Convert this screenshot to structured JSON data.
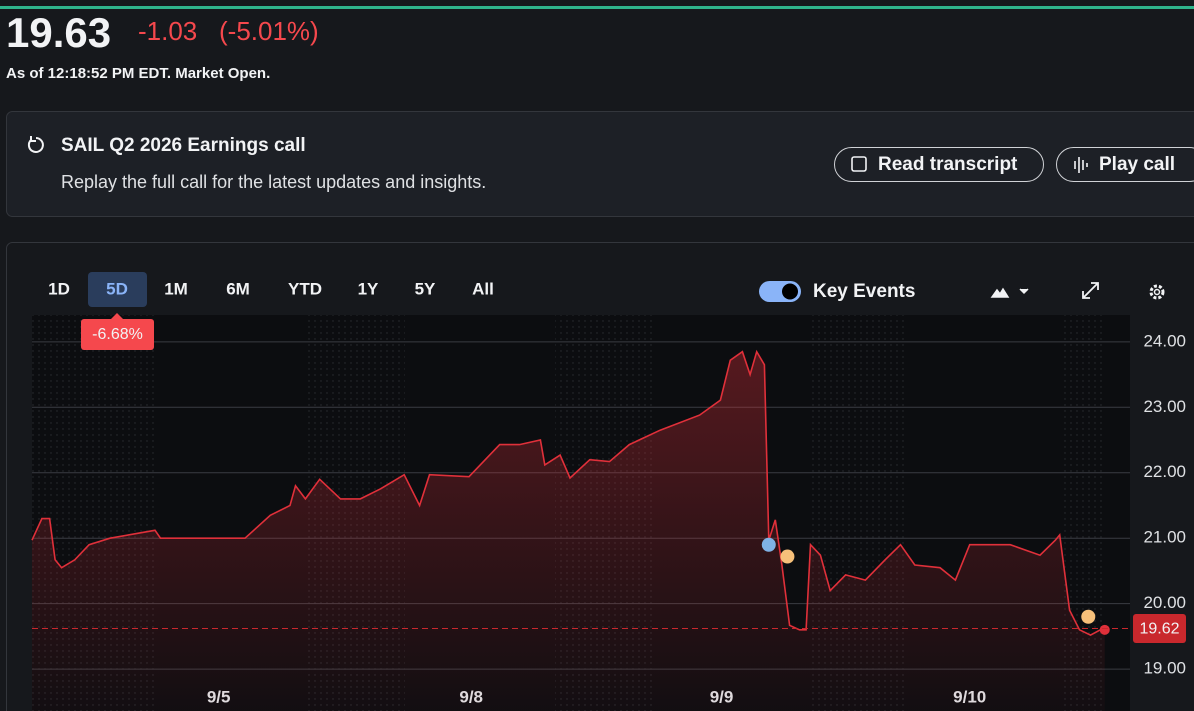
{
  "quote": {
    "price": "19.63",
    "change": "-1.03",
    "change_pct": "(-5.01%)",
    "as_of": "As of 12:18:52 PM EDT. Market Open."
  },
  "banner": {
    "title": "SAIL Q2 2026 Earnings call",
    "subtitle": "Replay the full call for the latest updates and insights.",
    "buttons": [
      "Read transcript",
      "Play call"
    ]
  },
  "ranges": [
    "1D",
    "5D",
    "1M",
    "6M",
    "YTD",
    "1Y",
    "5Y",
    "All"
  ],
  "selected_range": 1,
  "period_change": "-6.68%",
  "key_events": "Key Events",
  "chart_data": {
    "type": "line",
    "x": [
      0,
      0.9,
      1.6,
      2.1,
      2.7,
      3.9,
      5.2,
      7.1,
      11.2,
      11.7,
      19.4,
      21.7,
      23.5,
      24.0,
      24.9,
      26.2,
      28.1,
      29.9,
      31.7,
      33.9,
      35.3,
      36.2,
      39.8,
      42.6,
      44.4,
      46.3,
      46.7,
      48.1,
      49.0,
      50.8,
      52.6,
      54.4,
      57.2,
      60.8,
      62.7,
      63.6,
      64.7,
      65.4,
      66.0,
      66.7,
      67.1,
      67.7,
      68.3,
      69.0,
      69.9,
      70.5,
      70.9,
      71.8,
      72.7,
      74.1,
      75.9,
      77.7,
      79.1,
      80.4,
      82.7,
      84.1,
      85.4,
      89.1,
      91.8,
      93.2,
      93.6,
      94.5,
      95.4,
      96.4,
      97.3,
      97.7
    ],
    "series": [
      {
        "color": "#e0303a",
        "values": [
          20.97,
          21.3,
          21.3,
          20.67,
          20.55,
          20.67,
          20.9,
          21.0,
          21.12,
          21.0,
          21.0,
          21.35,
          21.5,
          21.8,
          21.6,
          21.9,
          21.6,
          21.6,
          21.75,
          21.97,
          21.5,
          21.97,
          21.94,
          22.43,
          22.43,
          22.5,
          22.12,
          22.27,
          21.92,
          22.2,
          22.17,
          22.43,
          22.65,
          22.88,
          23.11,
          23.72,
          23.85,
          23.5,
          23.85,
          23.65,
          20.97,
          21.28,
          20.59,
          19.67,
          19.6,
          19.6,
          20.9,
          20.74,
          20.2,
          20.44,
          20.36,
          20.67,
          20.9,
          20.59,
          20.55,
          20.36,
          20.9,
          20.9,
          20.74,
          20.97,
          21.05,
          19.9,
          19.6,
          19.52,
          19.6,
          19.6
        ]
      }
    ],
    "xlim": [
      0,
      100
    ],
    "xticks": [
      {
        "value": 17.0,
        "label": "9/5"
      },
      {
        "value": 40.0,
        "label": "9/8"
      },
      {
        "value": 62.8,
        "label": "9/9"
      },
      {
        "value": 85.4,
        "label": "9/10"
      }
    ],
    "ylim": [
      18.36,
      24.41
    ],
    "yticks": [
      {
        "value": 19,
        "label": "19.00"
      },
      {
        "value": 20,
        "label": "20.00"
      },
      {
        "value": 21,
        "label": "21.00"
      },
      {
        "value": 22,
        "label": "22.00"
      },
      {
        "value": 23,
        "label": "23.00"
      },
      {
        "value": 24,
        "label": "24.00"
      }
    ],
    "grid": true,
    "reference": 19.62,
    "events": [
      {
        "x": 67.1,
        "value": 20.9,
        "color": "#7fb2e5"
      },
      {
        "x": 68.8,
        "value": 20.72,
        "color": "#f7c07a"
      },
      {
        "x": 96.2,
        "value": 19.8,
        "color": "#f7c07a"
      }
    ]
  }
}
